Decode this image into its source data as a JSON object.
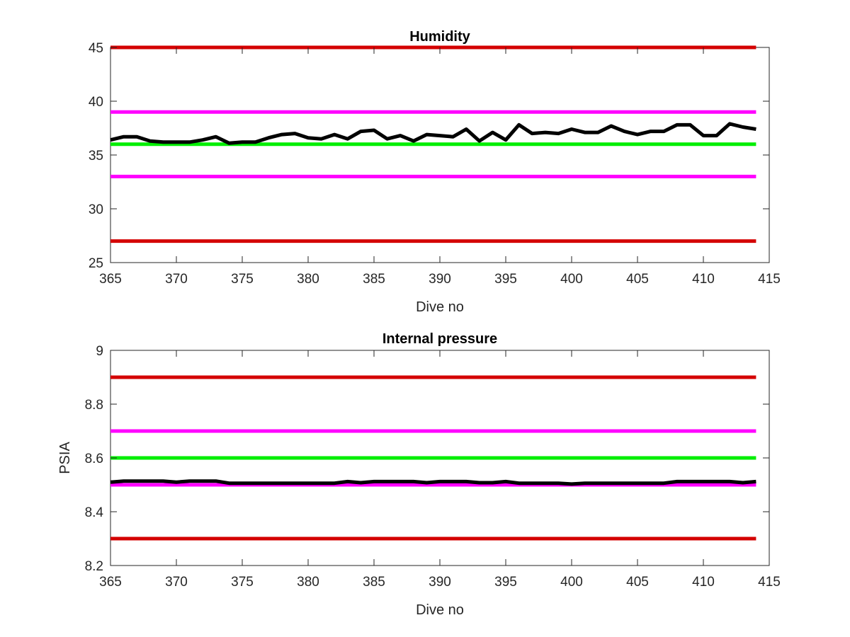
{
  "chart_data": [
    {
      "type": "line",
      "title": "Humidity",
      "xlabel": "Dive no",
      "ylabel": "",
      "xlim": [
        365,
        415
      ],
      "ylim": [
        25,
        45
      ],
      "xticks": [
        365,
        370,
        375,
        380,
        385,
        390,
        395,
        400,
        405,
        410,
        415
      ],
      "yticks": [
        25,
        30,
        35,
        40,
        45
      ],
      "grid": false,
      "reference_lines": [
        {
          "y": 45,
          "color": "#d40000"
        },
        {
          "y": 39,
          "color": "#ff00ff"
        },
        {
          "y": 36,
          "color": "#00ee00"
        },
        {
          "y": 33,
          "color": "#ff00ff"
        },
        {
          "y": 27,
          "color": "#d40000"
        }
      ],
      "series": [
        {
          "color": "#000000",
          "x": [
            365,
            366,
            367,
            368,
            369,
            370,
            371,
            372,
            373,
            374,
            375,
            376,
            377,
            378,
            379,
            380,
            381,
            382,
            383,
            384,
            385,
            386,
            387,
            388,
            389,
            390,
            391,
            392,
            393,
            394,
            395,
            396,
            397,
            398,
            399,
            400,
            401,
            402,
            403,
            404,
            405,
            406,
            407,
            408,
            409,
            410,
            411,
            412,
            413,
            414
          ],
          "values": [
            36.4,
            36.7,
            36.7,
            36.3,
            36.2,
            36.2,
            36.2,
            36.4,
            36.7,
            36.1,
            36.2,
            36.2,
            36.6,
            36.9,
            37.0,
            36.6,
            36.5,
            36.9,
            36.5,
            37.2,
            37.3,
            36.5,
            36.8,
            36.3,
            36.9,
            36.8,
            36.7,
            37.4,
            36.3,
            37.1,
            36.4,
            37.8,
            37.0,
            37.1,
            37.0,
            37.4,
            37.1,
            37.1,
            37.7,
            37.2,
            36.9,
            37.2,
            37.2,
            37.8,
            37.8,
            36.8,
            36.8,
            37.9,
            37.6,
            37.4
          ]
        }
      ]
    },
    {
      "type": "line",
      "title": "Internal pressure",
      "xlabel": "Dive no",
      "ylabel": "PSIA",
      "xlim": [
        365,
        415
      ],
      "ylim": [
        8.2,
        9.0
      ],
      "xticks": [
        365,
        370,
        375,
        380,
        385,
        390,
        395,
        400,
        405,
        410,
        415
      ],
      "yticks": [
        8.2,
        8.4,
        8.6,
        8.8,
        9
      ],
      "grid": false,
      "reference_lines": [
        {
          "y": 8.9,
          "color": "#d40000"
        },
        {
          "y": 8.7,
          "color": "#ff00ff"
        },
        {
          "y": 8.6,
          "color": "#00ee00"
        },
        {
          "y": 8.5,
          "color": "#ff00ff"
        },
        {
          "y": 8.3,
          "color": "#d40000"
        }
      ],
      "series": [
        {
          "color": "#000000",
          "x": [
            365,
            366,
            367,
            368,
            369,
            370,
            371,
            372,
            373,
            374,
            375,
            376,
            377,
            378,
            379,
            380,
            381,
            382,
            383,
            384,
            385,
            386,
            387,
            388,
            389,
            390,
            391,
            392,
            393,
            394,
            395,
            396,
            397,
            398,
            399,
            400,
            401,
            402,
            403,
            404,
            405,
            406,
            407,
            408,
            409,
            410,
            411,
            412,
            413,
            414
          ],
          "values": [
            8.51,
            8.514,
            8.514,
            8.514,
            8.514,
            8.51,
            8.514,
            8.514,
            8.514,
            8.506,
            8.506,
            8.506,
            8.506,
            8.506,
            8.506,
            8.506,
            8.506,
            8.506,
            8.512,
            8.508,
            8.512,
            8.512,
            8.512,
            8.512,
            8.508,
            8.512,
            8.512,
            8.512,
            8.508,
            8.508,
            8.512,
            8.506,
            8.506,
            8.506,
            8.506,
            8.503,
            8.506,
            8.506,
            8.506,
            8.506,
            8.506,
            8.506,
            8.506,
            8.512,
            8.512,
            8.512,
            8.512,
            8.512,
            8.508,
            8.512
          ]
        }
      ]
    }
  ]
}
